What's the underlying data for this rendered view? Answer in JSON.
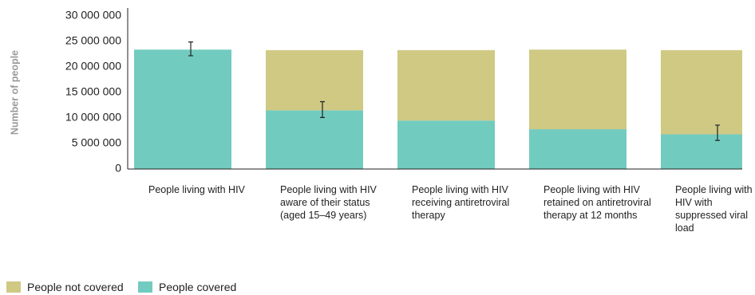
{
  "chart_data": {
    "type": "stacked_bar",
    "y_label": "Number of people",
    "categories": [
      "People living with HIV",
      "People living with HIV aware of their status (aged 15–49 years)",
      "People living with HIV receiving antiretroviral therapy",
      "People living with HIV retained on antiretroviral therapy at 12 months",
      "People living with HIV with suppressed viral load"
    ],
    "series": [
      {
        "name": "People not covered",
        "color": "#cfc984",
        "values": [
          0,
          11800000,
          13800000,
          15600000,
          16500000
        ]
      },
      {
        "name": "People covered",
        "color": "#72cbbf",
        "values": [
          23400000,
          11500000,
          9500000,
          7800000,
          6800000
        ],
        "error_low": [
          22200000,
          10100000,
          null,
          null,
          5600000
        ],
        "error_high": [
          24900000,
          13200000,
          null,
          null,
          8600000
        ]
      }
    ],
    "ylim": [
      0,
      30000000
    ],
    "yticks": [
      {
        "value": 0,
        "label": "0"
      },
      {
        "value": 5000000,
        "label": "5 000 000"
      },
      {
        "value": 10000000,
        "label": "10 000 000"
      },
      {
        "value": 15000000,
        "label": "15 000 000"
      },
      {
        "value": 20000000,
        "label": "20 000 000"
      },
      {
        "value": 25000000,
        "label": "25 000 000"
      },
      {
        "value": 30000000,
        "label": "30 000 000"
      }
    ],
    "legend_position": "bottom-left"
  }
}
